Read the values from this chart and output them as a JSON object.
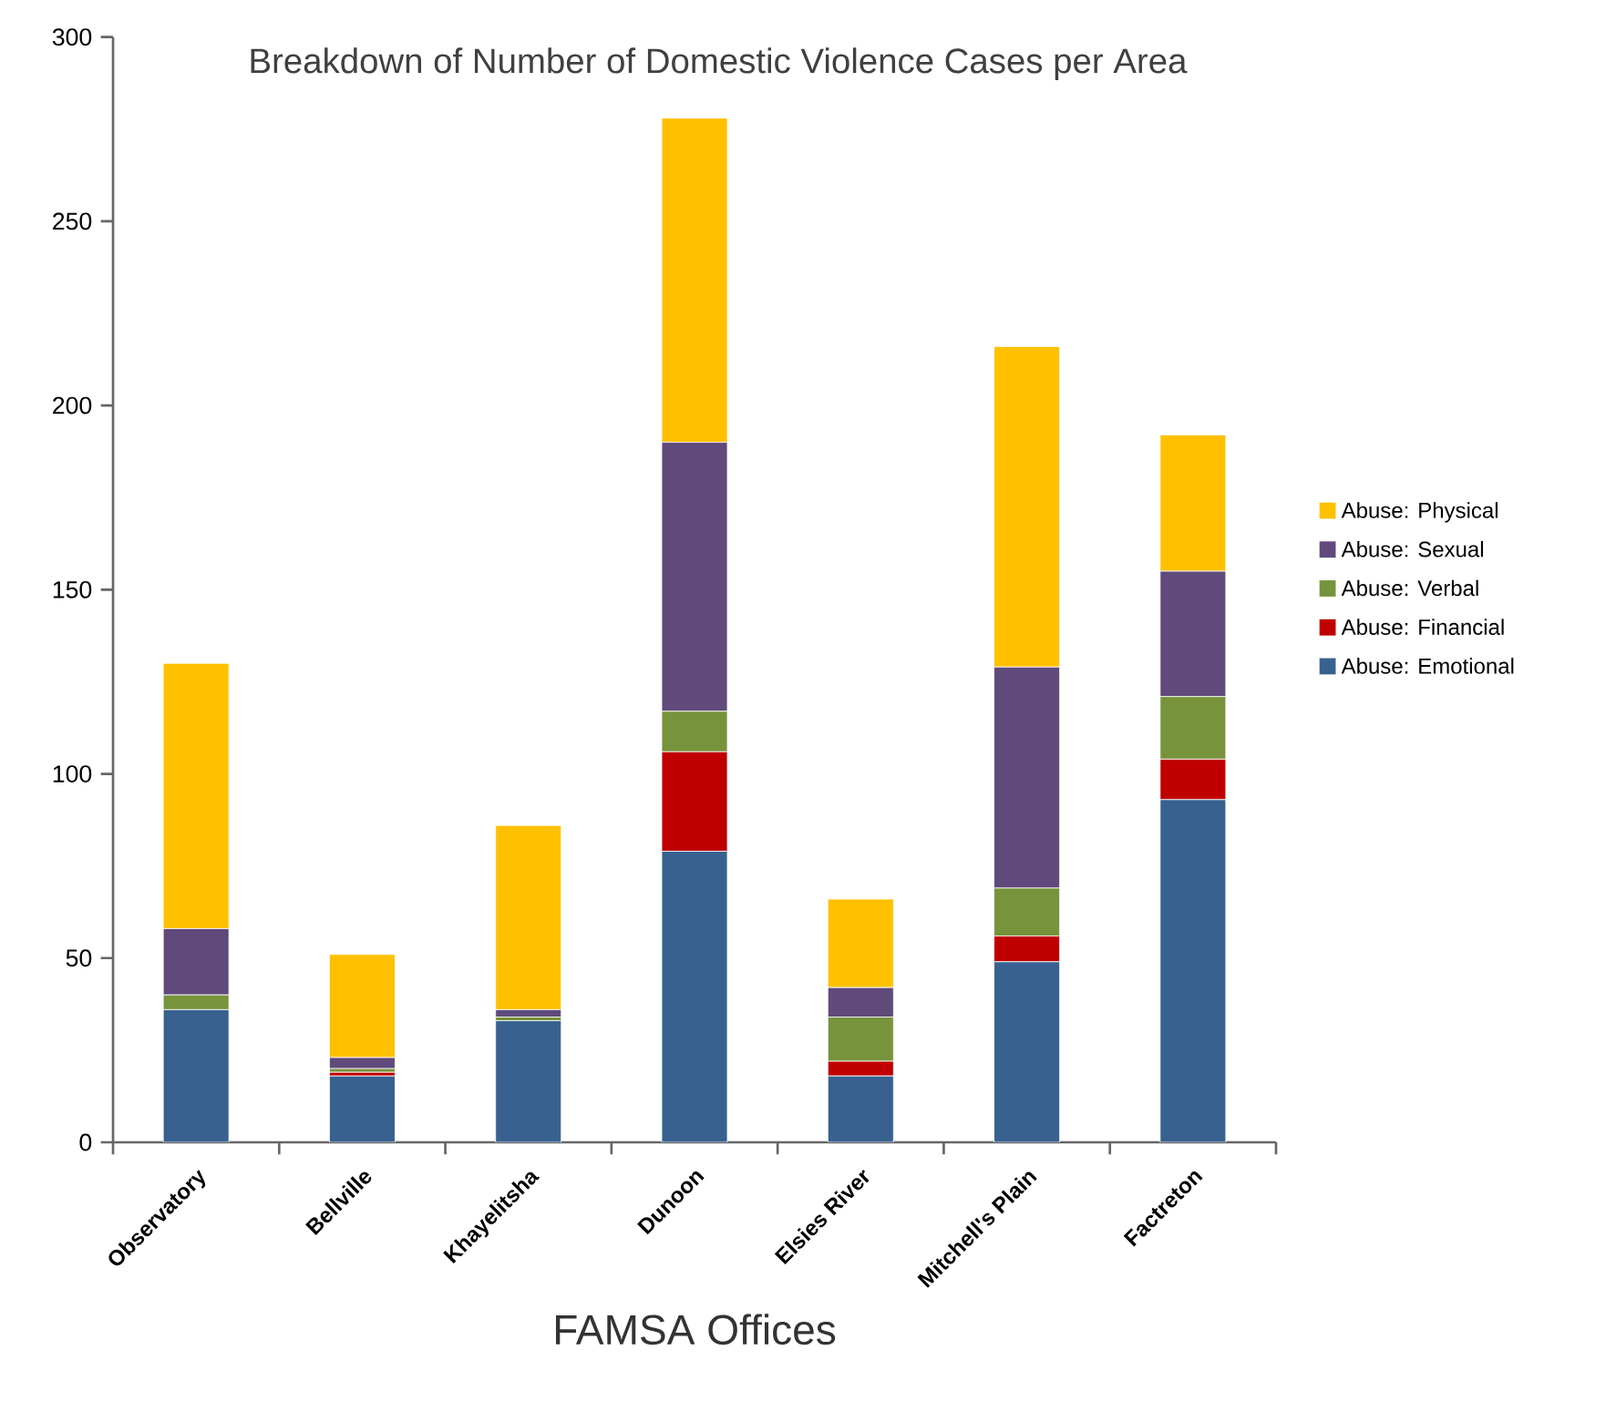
{
  "chart_data": {
    "type": "bar",
    "stacked": true,
    "title": "Breakdown of Number of Domestic Violence Cases per Area",
    "xlabel": "FAMSA Offices",
    "categories": [
      "Observatory",
      "Bellville",
      "Khayelitsha",
      "Dunoon",
      "Elsies River",
      "Mitchell's Plain",
      "Factreton"
    ],
    "series": [
      {
        "name": "Abuse: Emotional",
        "color": "#386190",
        "values": [
          36,
          18,
          33,
          79,
          18,
          49,
          93
        ]
      },
      {
        "name": "Abuse: Financial",
        "color": "#c00000",
        "values": [
          0,
          1,
          0,
          27,
          4,
          7,
          11
        ]
      },
      {
        "name": "Abuse: Verbal",
        "color": "#77933c",
        "values": [
          4,
          1,
          1,
          11,
          12,
          13,
          17
        ]
      },
      {
        "name": "Abuse: Sexual",
        "color": "#604a7b",
        "values": [
          18,
          3,
          2,
          73,
          8,
          60,
          34
        ]
      },
      {
        "name": "Abuse: Physical",
        "color": "#ffc000",
        "values": [
          72,
          28,
          50,
          88,
          24,
          87,
          37
        ]
      }
    ],
    "ylim": [
      0,
      300
    ],
    "yticks": [
      0,
      50,
      100,
      150,
      200,
      250,
      300
    ],
    "legend": "right",
    "grid": false
  }
}
